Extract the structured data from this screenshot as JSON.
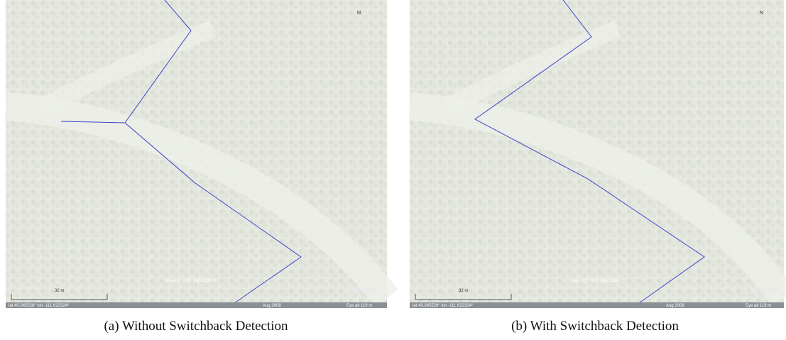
{
  "panels": [
    {
      "caption": "(a) Without Switchback Detection",
      "scale_label": "32 m",
      "imagery_credit": "Image © 2008 DigitalGlobe",
      "logo": "Google",
      "status": {
        "coordinates": "lat 40.245528° lon -111.622324°",
        "date": "Aug 2008",
        "eye_alt": "Eye alt 119 m"
      }
    },
    {
      "caption": "(b) With Switchback Detection",
      "scale_label": "32 m",
      "imagery_credit": "Image © 2008 DigitalGlobe",
      "logo": "Google",
      "status": {
        "coordinates": "lat 40.245528° lon -111.622324°",
        "date": "Aug 2008",
        "eye_alt": "Eye alt 119 m"
      }
    }
  ]
}
